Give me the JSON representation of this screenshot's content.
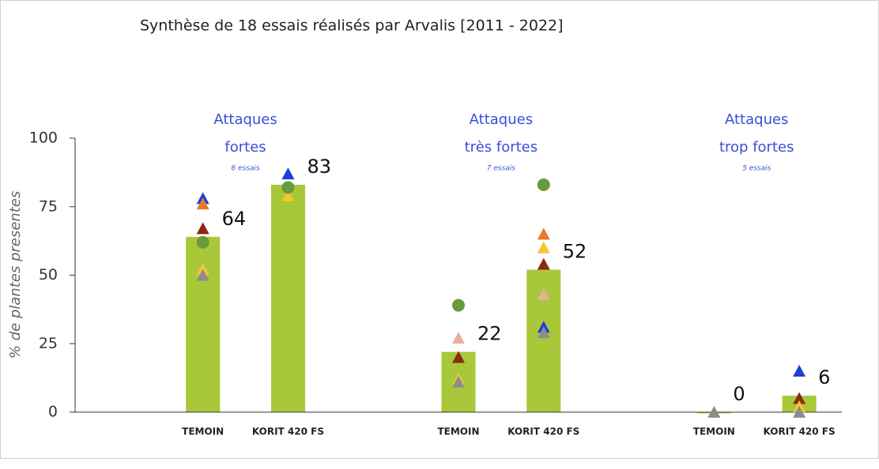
{
  "chart_data": {
    "type": "bar",
    "title": "Synthèse de 18 essais réalisés par Arvalis [2011 - 2022]",
    "ylabel": "% de plantes presentes",
    "categories": [
      "TEMOIN",
      "KORIT 420 FS",
      "TEMOIN",
      "KORIT 420 FS",
      "TEMOIN",
      "KORIT 420 FS"
    ],
    "values": [
      64,
      83,
      22,
      52,
      0,
      6
    ],
    "color": "#a8c83a",
    "groups": [
      {
        "label_lines": [
          "Attaques",
          "fortes"
        ],
        "note": "6 essais"
      },
      {
        "label_lines": [
          "Attaques",
          "très fortes"
        ],
        "note": "7 essais"
      },
      {
        "label_lines": [
          "Attaques",
          "trop fortes"
        ],
        "note": "5 essais"
      }
    ],
    "ylim": [
      0,
      100
    ],
    "yticks": [
      0,
      25,
      50,
      75,
      100
    ],
    "series": [
      {
        "color": "#1f3fd6",
        "marker": "triangle",
        "values": [
          78,
          87,
          null,
          31,
          null,
          15
        ]
      },
      {
        "color": "#e8792c",
        "marker": "triangle",
        "values": [
          76,
          null,
          null,
          65,
          null,
          null
        ]
      },
      {
        "color": "#8b2a0e",
        "marker": "triangle",
        "values": [
          67,
          null,
          20,
          54,
          null,
          5
        ]
      },
      {
        "color": "#f7c531",
        "marker": "triangle",
        "values": [
          52,
          79,
          12,
          60,
          null,
          2
        ]
      },
      {
        "color": "#e8b09a",
        "marker": "triangle",
        "values": [
          null,
          null,
          27,
          43,
          null,
          null
        ]
      },
      {
        "color": "#8c8c8c",
        "marker": "triangle",
        "values": [
          50,
          null,
          11,
          29,
          0,
          0
        ]
      },
      {
        "color": "#6b9a3c",
        "marker": "circle",
        "values": [
          62,
          82,
          39,
          83,
          null,
          null
        ]
      }
    ]
  }
}
